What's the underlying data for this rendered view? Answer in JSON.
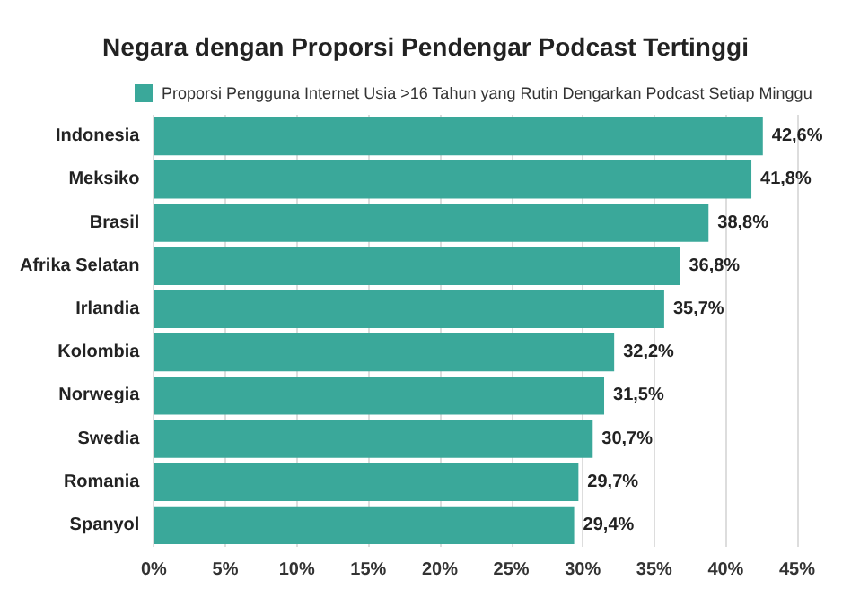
{
  "chart_data": {
    "type": "bar",
    "orientation": "horizontal",
    "title": "Negara dengan Proporsi Pendengar Podcast Tertinggi",
    "categories": [
      "Indonesia",
      "Meksiko",
      "Brasil",
      "Afrika Selatan",
      "Irlandia",
      "Kolombia",
      "Norwegia",
      "Swedia",
      "Romania",
      "Spanyol"
    ],
    "series": [
      {
        "name": "Proporsi Pengguna Internet Usia >16 Tahun yang Rutin Dengarkan Podcast Setiap Minggu",
        "color": "#3aa89a",
        "values": [
          42.6,
          41.8,
          38.8,
          36.8,
          35.7,
          32.2,
          31.5,
          30.7,
          29.7,
          29.4
        ],
        "value_labels": [
          "42,6%",
          "41,8%",
          "38,8%",
          "36,8%",
          "35,7%",
          "32,2%",
          "31,5%",
          "30,7%",
          "29,7%",
          "29,4%"
        ]
      }
    ],
    "xlim": [
      0,
      45
    ],
    "xticks": [
      {
        "value": 0,
        "label": "0%"
      },
      {
        "value": 5,
        "label": "5%"
      },
      {
        "value": 10,
        "label": "10%"
      },
      {
        "value": 15,
        "label": "15%"
      },
      {
        "value": 20,
        "label": "20%"
      },
      {
        "value": 25,
        "label": "25%"
      },
      {
        "value": 30,
        "label": "30%"
      },
      {
        "value": 35,
        "label": "35%"
      },
      {
        "value": 40,
        "label": "40%"
      },
      {
        "value": 45,
        "label": "45%"
      }
    ],
    "grid": "x",
    "legend": "top left"
  }
}
